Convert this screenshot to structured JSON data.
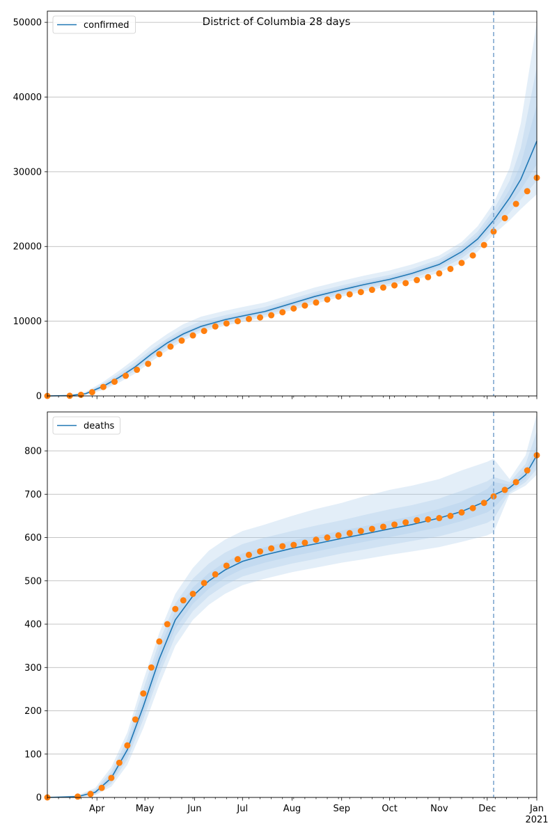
{
  "title": "District of Columbia 28 days",
  "x_axis": {
    "range": [
      "2020-03-01",
      "2021-01-01"
    ],
    "forecast_start": "2020-12-05",
    "month_labels": [
      "Apr",
      "May",
      "Jun",
      "Jul",
      "Aug",
      "Sep",
      "Oct",
      "Nov",
      "Dec",
      "Jan"
    ],
    "month_dates": [
      "2020-04-01",
      "2020-05-01",
      "2020-06-01",
      "2020-07-01",
      "2020-08-01",
      "2020-09-01",
      "2020-10-01",
      "2020-11-01",
      "2020-12-01",
      "2021-01-01"
    ],
    "year_label": "2021"
  },
  "colors": {
    "model_line": "#1f77b4",
    "observed": "#ff7f0e",
    "band": "#a9c9e8",
    "forecast_line": "#7fa7cf",
    "grid": "#b0b0b0"
  },
  "chart_data": [
    {
      "type": "line",
      "legend": "confirmed",
      "legend_placement": "top-left",
      "grid": "horizontal",
      "ylim": [
        0,
        51500
      ],
      "yticks": [
        0,
        10000,
        20000,
        30000,
        40000,
        50000
      ],
      "ytick_labels": [
        "0",
        "10000",
        "20000",
        "30000",
        "40000",
        "50000"
      ],
      "model": {
        "x": [
          "2020-03-01",
          "2020-03-15",
          "2020-03-25",
          "2020-04-05",
          "2020-04-15",
          "2020-04-25",
          "2020-05-05",
          "2020-05-15",
          "2020-05-25",
          "2020-06-05",
          "2020-06-20",
          "2020-07-01",
          "2020-07-15",
          "2020-08-01",
          "2020-08-15",
          "2020-09-01",
          "2020-09-15",
          "2020-10-01",
          "2020-10-15",
          "2020-11-01",
          "2020-11-15",
          "2020-11-25",
          "2020-12-05",
          "2020-12-15",
          "2020-12-22",
          "2021-01-01"
        ],
        "y": [
          0,
          50,
          300,
          1300,
          2500,
          3900,
          5600,
          7100,
          8300,
          9300,
          10200,
          10700,
          11300,
          12400,
          13300,
          14200,
          14900,
          15600,
          16400,
          17600,
          19300,
          21000,
          23500,
          26500,
          29000,
          34100
        ],
        "bands": [
          {
            "lower": [
              0,
              30,
              150,
              800,
              1800,
              3000,
              4600,
              6100,
              7400,
              8500,
              9400,
              9900,
              10500,
              11500,
              12300,
              13300,
              14000,
              14700,
              15400,
              16500,
              17800,
              19300,
              21600,
              23500,
              25000,
              27000
            ],
            "upper": [
              0,
              100,
              550,
              1900,
              3400,
              5000,
              6800,
              8300,
              9600,
              10600,
              11400,
              11900,
              12500,
              13600,
              14500,
              15400,
              16100,
              16800,
              17600,
              18800,
              20600,
              22700,
              25800,
              30500,
              36500,
              50000
            ]
          },
          {
            "lower": [
              0,
              40,
              200,
              1000,
              2100,
              3400,
              5000,
              6500,
              7800,
              8800,
              9700,
              10200,
              10800,
              11800,
              12700,
              13600,
              14300,
              15000,
              15800,
              16900,
              18400,
              20000,
              22300,
              24500,
              26300,
              28800
            ],
            "upper": [
              0,
              80,
              420,
              1650,
              3000,
              4500,
              6200,
              7700,
              9000,
              10000,
              10800,
              11300,
              11900,
              13000,
              13900,
              14800,
              15500,
              16200,
              17000,
              18300,
              20100,
              22000,
              24900,
              28800,
              33200,
              44000
            ]
          },
          {
            "lower": [
              0,
              45,
              250,
              1150,
              2300,
              3700,
              5300,
              6800,
              8050,
              9050,
              9950,
              10450,
              11050,
              12100,
              13000,
              13900,
              14600,
              15300,
              16100,
              17250,
              18850,
              20500,
              22900,
              25500,
              27600,
              31000
            ],
            "upper": [
              0,
              60,
              360,
              1450,
              2700,
              4150,
              5900,
              7400,
              8600,
              9550,
              10450,
              10950,
              11550,
              12700,
              13600,
              14500,
              15200,
              15900,
              16700,
              17950,
              19750,
              21500,
              24200,
              27600,
              31000,
              39000
            ]
          }
        ]
      },
      "observed": {
        "x": [
          "2020-03-01",
          "2020-03-15",
          "2020-03-22",
          "2020-03-29",
          "2020-04-05",
          "2020-04-12",
          "2020-04-19",
          "2020-04-26",
          "2020-05-03",
          "2020-05-10",
          "2020-05-17",
          "2020-05-24",
          "2020-05-31",
          "2020-06-07",
          "2020-06-14",
          "2020-06-21",
          "2020-06-28",
          "2020-07-05",
          "2020-07-12",
          "2020-07-19",
          "2020-07-26",
          "2020-08-02",
          "2020-08-09",
          "2020-08-16",
          "2020-08-23",
          "2020-08-30",
          "2020-09-06",
          "2020-09-13",
          "2020-09-20",
          "2020-09-27",
          "2020-10-04",
          "2020-10-11",
          "2020-10-18",
          "2020-10-25",
          "2020-11-01",
          "2020-11-08",
          "2020-11-15",
          "2020-11-22",
          "2020-11-29",
          "2020-12-05",
          "2020-12-12",
          "2020-12-19",
          "2020-12-26",
          "2021-01-01"
        ],
        "y": [
          0,
          20,
          150,
          500,
          1200,
          1900,
          2700,
          3500,
          4300,
          5600,
          6600,
          7400,
          8100,
          8700,
          9300,
          9700,
          10000,
          10300,
          10500,
          10800,
          11200,
          11700,
          12100,
          12500,
          12900,
          13300,
          13600,
          13900,
          14200,
          14500,
          14800,
          15100,
          15500,
          15900,
          16400,
          17000,
          17800,
          18800,
          20200,
          22000,
          23800,
          25700,
          27400,
          29200
        ]
      }
    },
    {
      "type": "line",
      "legend": "deaths",
      "legend_placement": "top-left",
      "grid": "horizontal",
      "ylim": [
        0,
        890
      ],
      "yticks": [
        0,
        100,
        200,
        300,
        400,
        500,
        600,
        700,
        800
      ],
      "ytick_labels": [
        "0",
        "100",
        "200",
        "300",
        "400",
        "500",
        "600",
        "700",
        "800"
      ],
      "model": {
        "x": [
          "2020-03-01",
          "2020-03-20",
          "2020-03-31",
          "2020-04-10",
          "2020-04-20",
          "2020-04-30",
          "2020-05-10",
          "2020-05-20",
          "2020-05-31",
          "2020-06-10",
          "2020-06-20",
          "2020-07-01",
          "2020-07-15",
          "2020-08-01",
          "2020-08-15",
          "2020-09-01",
          "2020-09-15",
          "2020-10-01",
          "2020-10-15",
          "2020-11-01",
          "2020-11-15",
          "2020-12-01",
          "2020-12-05",
          "2020-12-15",
          "2020-12-25",
          "2021-01-01"
        ],
        "y": [
          0,
          2,
          12,
          45,
          110,
          210,
          320,
          410,
          465,
          500,
          525,
          545,
          560,
          575,
          585,
          598,
          608,
          620,
          630,
          645,
          660,
          685,
          698,
          715,
          745,
          790
        ],
        "bands": [
          {
            "lower": [
              0,
              0,
              5,
              25,
              75,
              160,
              260,
              350,
              410,
              445,
              470,
              490,
              505,
              520,
              530,
              542,
              550,
              560,
              568,
              578,
              590,
              605,
              612,
              700,
              720,
              745
            ],
            "upper": [
              0,
              5,
              22,
              70,
              150,
              270,
              380,
              470,
              530,
              570,
              595,
              615,
              630,
              650,
              665,
              680,
              695,
              710,
              720,
              735,
              755,
              775,
              782,
              735,
              790,
              885
            ]
          },
          {
            "lower": [
              0,
              1,
              7,
              32,
              88,
              180,
              283,
              372,
              430,
              465,
              490,
              510,
              525,
              540,
              550,
              563,
              572,
              583,
              592,
              603,
              616,
              634,
              643,
              704,
              728,
              758
            ],
            "upper": [
              0,
              4,
              18,
              60,
              135,
              250,
              360,
              448,
              505,
              540,
              565,
              585,
              600,
              615,
              627,
              640,
              652,
              665,
              675,
              690,
              708,
              730,
              740,
              728,
              770,
              845
            ]
          },
          {
            "lower": [
              0,
              1.5,
              9,
              38,
              98,
              193,
              300,
              390,
              447,
              482,
              507,
              527,
              542,
              557,
              567,
              580,
              590,
              601,
              611,
              624,
              638,
              658,
              668,
              708,
              736,
              772
            ],
            "upper": [
              0,
              3,
              15,
              52,
              122,
              228,
              342,
              430,
              485,
              518,
              543,
              563,
              578,
              593,
              603,
              616,
              626,
              639,
              649,
              666,
              682,
              712,
              728,
              722,
              756,
              812
            ]
          }
        ]
      },
      "observed": {
        "x": [
          "2020-03-01",
          "2020-03-20",
          "2020-03-28",
          "2020-04-04",
          "2020-04-10",
          "2020-04-15",
          "2020-04-20",
          "2020-04-25",
          "2020-04-30",
          "2020-05-05",
          "2020-05-10",
          "2020-05-15",
          "2020-05-20",
          "2020-05-25",
          "2020-05-31",
          "2020-06-07",
          "2020-06-14",
          "2020-06-21",
          "2020-06-28",
          "2020-07-05",
          "2020-07-12",
          "2020-07-19",
          "2020-07-26",
          "2020-08-02",
          "2020-08-09",
          "2020-08-16",
          "2020-08-23",
          "2020-08-30",
          "2020-09-06",
          "2020-09-13",
          "2020-09-20",
          "2020-09-27",
          "2020-10-04",
          "2020-10-11",
          "2020-10-18",
          "2020-10-25",
          "2020-11-01",
          "2020-11-08",
          "2020-11-15",
          "2020-11-22",
          "2020-11-29",
          "2020-12-05",
          "2020-12-12",
          "2020-12-19",
          "2020-12-26",
          "2021-01-01"
        ],
        "y": [
          0,
          2,
          8,
          22,
          45,
          80,
          120,
          180,
          240,
          300,
          360,
          400,
          435,
          455,
          470,
          495,
          515,
          535,
          550,
          560,
          568,
          575,
          580,
          583,
          588,
          595,
          600,
          605,
          610,
          615,
          620,
          625,
          630,
          635,
          640,
          642,
          645,
          650,
          658,
          668,
          680,
          695,
          710,
          728,
          755,
          790
        ]
      }
    }
  ]
}
